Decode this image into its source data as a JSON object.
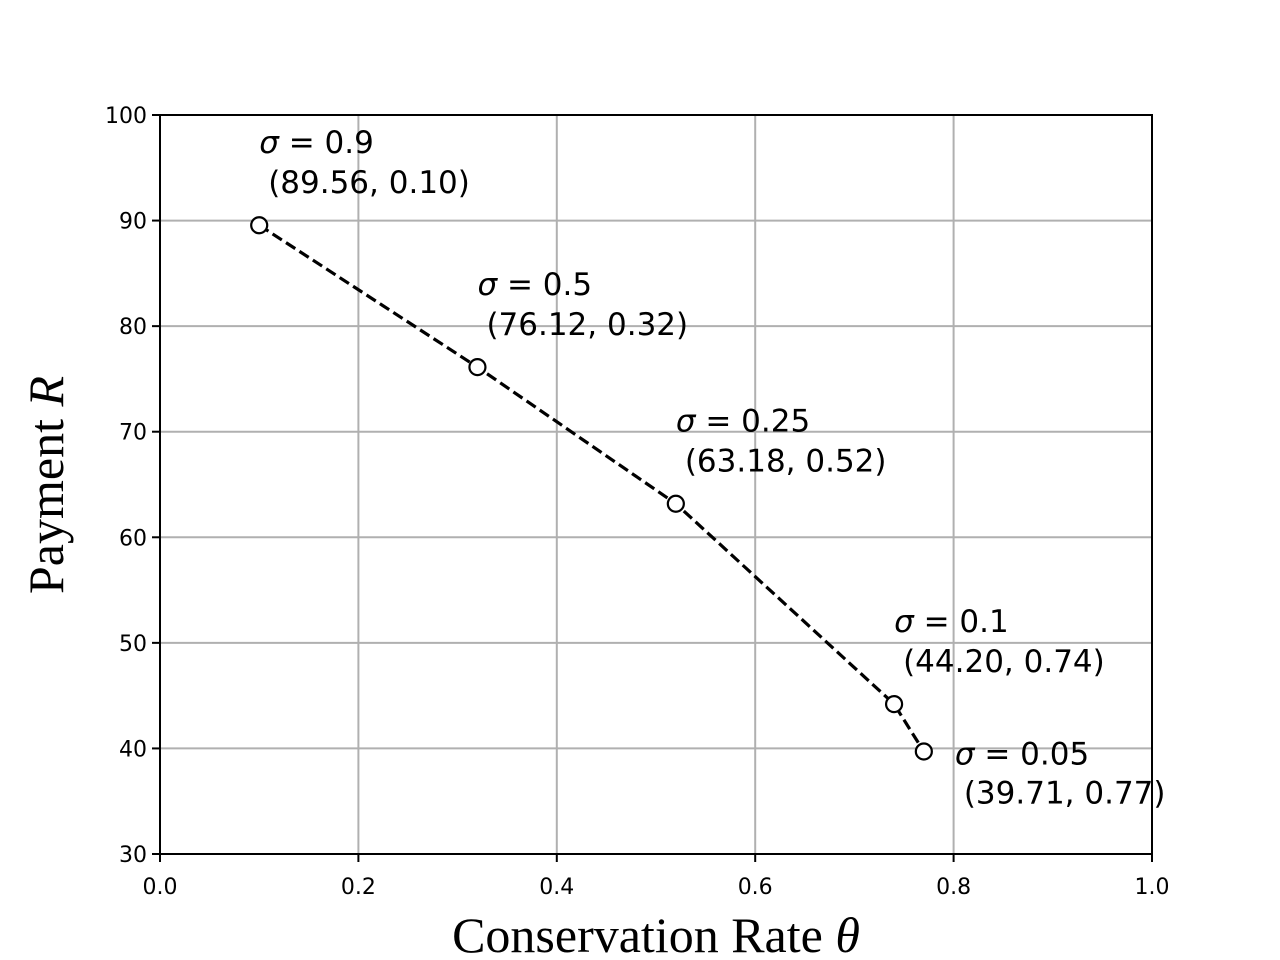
{
  "chart_data": {
    "type": "line",
    "title": "",
    "xlabel": {
      "text": "Conservation Rate ",
      "symbol": "θ"
    },
    "ylabel": {
      "text": "Payment ",
      "symbol": "R"
    },
    "xlim": [
      0.0,
      1.0
    ],
    "ylim": [
      30,
      100
    ],
    "x_ticks": [
      "0.0",
      "0.2",
      "0.4",
      "0.6",
      "0.8",
      "1.0"
    ],
    "y_ticks": [
      "30",
      "40",
      "50",
      "60",
      "70",
      "80",
      "90",
      "100"
    ],
    "grid": true,
    "series": [
      {
        "line_style": "dashed",
        "marker": "open-circle",
        "color": "#000000",
        "points": [
          {
            "x": 0.1,
            "y": 89.56
          },
          {
            "x": 0.32,
            "y": 76.12
          },
          {
            "x": 0.52,
            "y": 63.18
          },
          {
            "x": 0.74,
            "y": 44.2
          },
          {
            "x": 0.77,
            "y": 39.71
          }
        ]
      }
    ],
    "annotations": [
      {
        "symbol": "σ",
        "eq": " = 0.9",
        "coords": "(89.56, 0.10)",
        "placement": "above"
      },
      {
        "symbol": "σ",
        "eq": " = 0.5",
        "coords": "(76.12, 0.32)",
        "placement": "above"
      },
      {
        "symbol": "σ",
        "eq": " = 0.25",
        "coords": "(63.18, 0.52)",
        "placement": "above"
      },
      {
        "symbol": "σ",
        "eq": " = 0.1",
        "coords": "(44.20, 0.74)",
        "placement": "above"
      },
      {
        "symbol": "σ",
        "eq": " = 0.05",
        "coords": "(39.71, 0.77)",
        "placement": "right"
      }
    ]
  }
}
